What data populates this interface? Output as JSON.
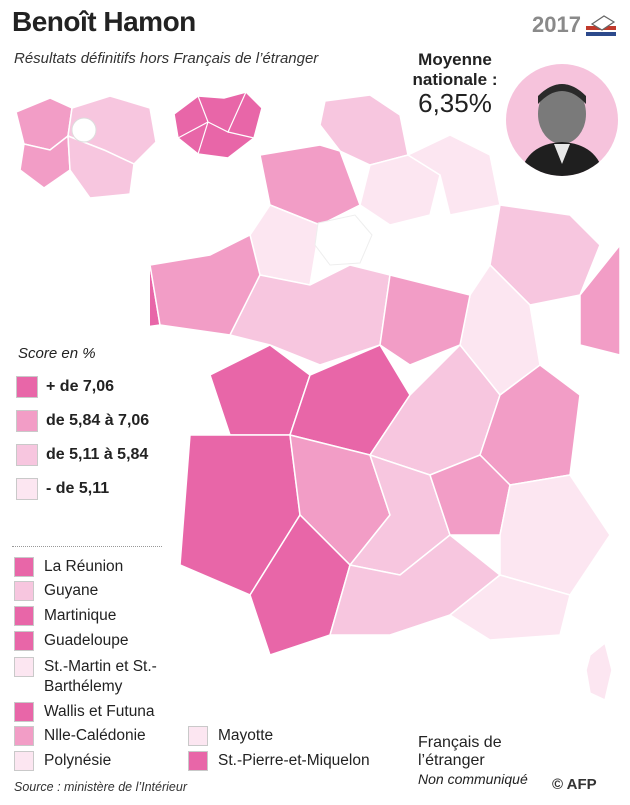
{
  "header": {
    "title": "Benoît Hamon",
    "subtitle": "Résultats définitifs hors Français de l’étranger",
    "year": "2017",
    "average_label": "Moyenne nationale :",
    "average_value": "6,35%"
  },
  "colors": {
    "level1": "#e866a8",
    "level2": "#f29dc6",
    "level3": "#f7c6df",
    "level4": "#fce6f1",
    "nodata": "#ffffff",
    "border": "#ffffff"
  },
  "legend": {
    "title": "Score en %",
    "items": [
      {
        "label": "+ de 7,06",
        "color": "#e866a8"
      },
      {
        "label": "de 5,84 à 7,06",
        "color": "#f29dc6"
      },
      {
        "label": "de 5,11 à 5,84",
        "color": "#f7c6df"
      },
      {
        "label": "- de 5,11",
        "color": "#fce6f1"
      }
    ]
  },
  "overseas": [
    {
      "name": "La Réunion",
      "color": "#e866a8"
    },
    {
      "name": "Guyane",
      "color": "#f7c6df"
    },
    {
      "name": "Martinique",
      "color": "#e866a8"
    },
    {
      "name": "Guadeloupe",
      "color": "#e866a8"
    },
    {
      "name": "St.-Martin et St.-Barthélemy",
      "color": "#fce6f1"
    },
    {
      "name": "Wallis et Futuna",
      "color": "#e866a8"
    },
    {
      "name": "Nlle-Calédonie",
      "color": "#f29dc6"
    },
    {
      "name": "Polynésie",
      "color": "#fce6f1"
    },
    {
      "name": "Mayotte",
      "color": "#fce6f1"
    },
    {
      "name": "St.-Pierre-et-Miquelon",
      "color": "#e866a8"
    }
  ],
  "abroad": {
    "label": "Français de l’étranger",
    "note": "Non communiqué"
  },
  "footer": {
    "source": "Source : ministère de l’Intérieur",
    "credit": "© AFP"
  }
}
